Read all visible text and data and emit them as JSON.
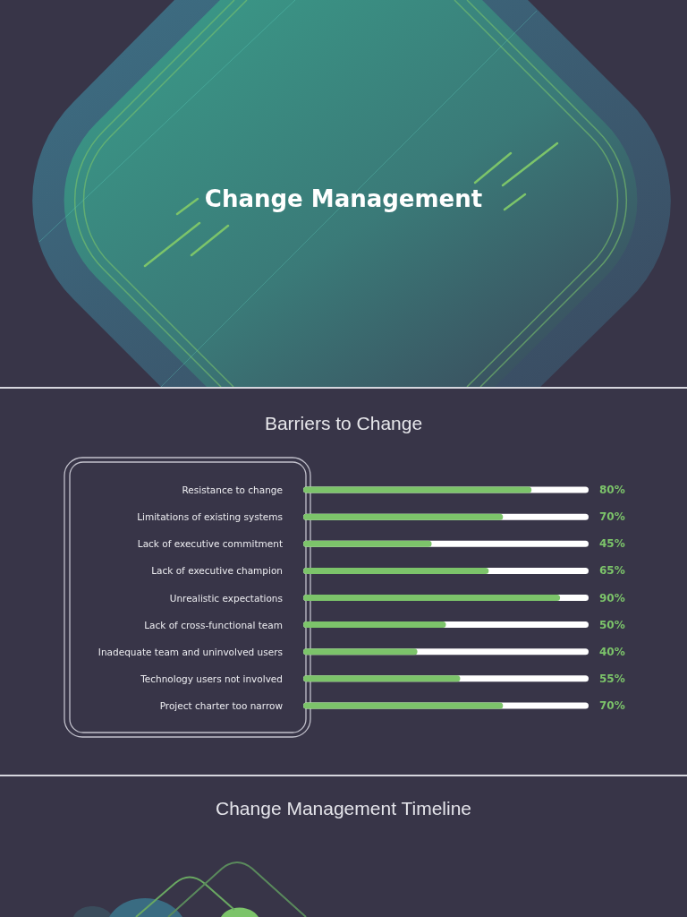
{
  "chart_data": {
    "type": "bar",
    "title": "Barriers to Change",
    "annotations": [
      "Change Management",
      "Change Management Timeline"
    ],
    "categories": [
      "Resistance to change",
      "Limitations of existing systems",
      "Lack of executive commitment",
      "Lack of executive champion",
      "Unrealistic expectations",
      "Lack of cross-functional team",
      "Inadequate team and uninvolved users",
      "Technology users not involved",
      "Project charter too narrow"
    ],
    "values": [
      80,
      70,
      45,
      65,
      90,
      50,
      40,
      55,
      70
    ],
    "color": "#7cc46a",
    "value_labels": [
      "80%",
      "70%",
      "45%",
      "65%",
      "90%",
      "50%",
      "40%",
      "55%",
      "70%"
    ],
    "orientation": "horizontal",
    "xlim": [
      0,
      100
    ],
    "tick_labels": "y"
  }
}
